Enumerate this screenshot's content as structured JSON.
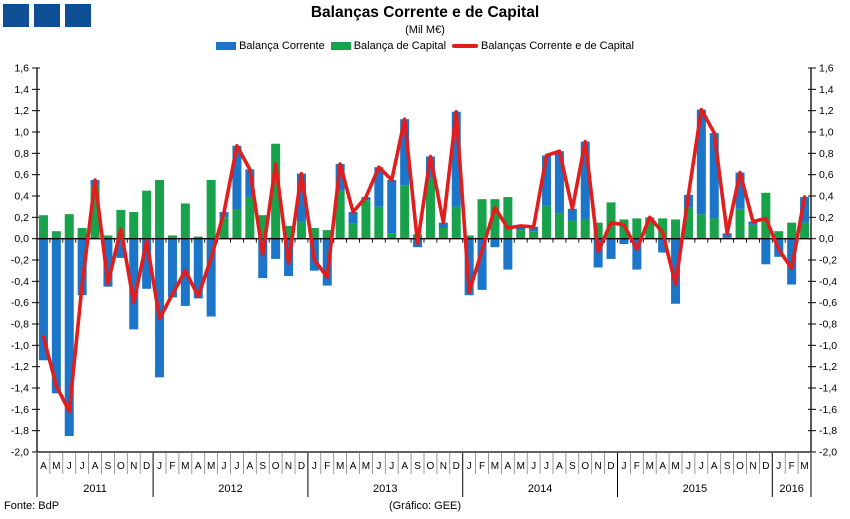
{
  "header": {
    "title": "Balanças Corrente e de Capital",
    "subtitle": "(Mil M€)"
  },
  "legend": [
    {
      "label": "Balança Corrente",
      "color": "#1B75C8",
      "swatch": "bar"
    },
    {
      "label": "Balança de Capital",
      "color": "#17A24B",
      "swatch": "bar"
    },
    {
      "label": "Balanças Corrente e de Capital",
      "color": "#E21D1D",
      "swatch": "line"
    }
  ],
  "footer": {
    "source": "Fonte: BdP",
    "credit": "(Gráfico: GEE)"
  },
  "colors": {
    "logo": "#0E4E94",
    "axis": "#000000",
    "month_separator": "#7F7F7F",
    "corrente_blue": "#1B75C8",
    "capital_green": "#17A24B",
    "total_red": "#E21D1D"
  },
  "chart_data": {
    "type": "bar",
    "title": "Balanças Corrente e de Capital",
    "subtitle": "(Mil M€)",
    "ylim": [
      -2.0,
      1.6
    ],
    "ytick": 0.2,
    "grid": false,
    "legend_position": "top",
    "months": [
      "A",
      "M",
      "J",
      "J",
      "A",
      "S",
      "O",
      "N",
      "D",
      "J",
      "F",
      "M",
      "A",
      "M",
      "J",
      "J",
      "A",
      "S",
      "O",
      "N",
      "D",
      "J",
      "F",
      "M",
      "A",
      "M",
      "J",
      "J",
      "A",
      "S",
      "O",
      "N",
      "D",
      "J",
      "F",
      "M",
      "A",
      "M",
      "J",
      "J",
      "A",
      "S",
      "O",
      "N",
      "D",
      "J",
      "F",
      "M",
      "A",
      "M",
      "J",
      "J",
      "A",
      "S",
      "O",
      "N",
      "D",
      "J",
      "F",
      "M"
    ],
    "years": [
      {
        "label": "2011",
        "count": 9
      },
      {
        "label": "2012",
        "count": 12
      },
      {
        "label": "2013",
        "count": 12
      },
      {
        "label": "2014",
        "count": 12
      },
      {
        "label": "2015",
        "count": 12
      },
      {
        "label": "2016",
        "count": 3
      }
    ],
    "series": [
      {
        "name": "Balança Corrente",
        "type": "bar",
        "color": "#1B75C8",
        "values": [
          -1.14,
          -1.45,
          -1.85,
          -0.53,
          0.05,
          -0.45,
          -0.18,
          -0.85,
          -0.47,
          -1.3,
          -0.55,
          -0.63,
          -0.56,
          -0.73,
          0.05,
          0.6,
          0.26,
          -0.37,
          -0.19,
          -0.35,
          0.45,
          -0.3,
          -0.44,
          0.25,
          0.11,
          0.03,
          0.37,
          0.5,
          0.62,
          -0.08,
          0.2,
          0.05,
          0.89,
          -0.53,
          -0.48,
          -0.08,
          -0.29,
          0.04,
          0.04,
          0.47,
          0.58,
          0.11,
          0.73,
          -0.27,
          -0.19,
          -0.05,
          -0.29,
          0.0,
          -0.13,
          -0.61,
          0.12,
          0.98,
          0.8,
          0.04,
          0.34,
          0.03,
          -0.24,
          -0.17,
          -0.43,
          0.24
        ]
      },
      {
        "name": "Balança de Capital",
        "type": "bar",
        "color": "#17A24B",
        "values": [
          0.22,
          0.07,
          0.23,
          0.1,
          0.5,
          0.03,
          0.27,
          0.25,
          0.45,
          0.55,
          0.03,
          0.33,
          0.02,
          0.55,
          0.2,
          0.27,
          0.39,
          0.22,
          0.89,
          0.12,
          0.16,
          0.1,
          0.08,
          0.45,
          0.14,
          0.36,
          0.3,
          0.05,
          0.5,
          0.04,
          0.57,
          0.1,
          0.3,
          0.03,
          0.37,
          0.37,
          0.39,
          0.08,
          0.07,
          0.31,
          0.24,
          0.17,
          0.18,
          0.15,
          0.34,
          0.18,
          0.19,
          0.2,
          0.19,
          0.18,
          0.29,
          0.23,
          0.19,
          0.01,
          0.28,
          0.13,
          0.43,
          0.07,
          0.15,
          0.15
        ]
      },
      {
        "name": "Balanças Corrente e de Capital",
        "type": "line",
        "color": "#E21D1D",
        "values": [
          -0.92,
          -1.38,
          -1.62,
          -0.43,
          0.55,
          -0.42,
          0.09,
          -0.6,
          -0.02,
          -0.75,
          -0.52,
          -0.3,
          -0.54,
          -0.18,
          0.25,
          0.87,
          0.65,
          -0.15,
          0.7,
          -0.23,
          0.61,
          -0.2,
          -0.36,
          0.7,
          0.25,
          0.39,
          0.67,
          0.55,
          1.12,
          -0.04,
          0.77,
          0.15,
          1.19,
          -0.5,
          -0.11,
          0.29,
          0.1,
          0.12,
          0.11,
          0.78,
          0.82,
          0.28,
          0.91,
          -0.12,
          0.15,
          0.13,
          -0.1,
          0.2,
          0.06,
          -0.43,
          0.41,
          1.21,
          0.99,
          0.05,
          0.62,
          0.16,
          0.19,
          -0.1,
          -0.28,
          0.39
        ]
      }
    ]
  }
}
